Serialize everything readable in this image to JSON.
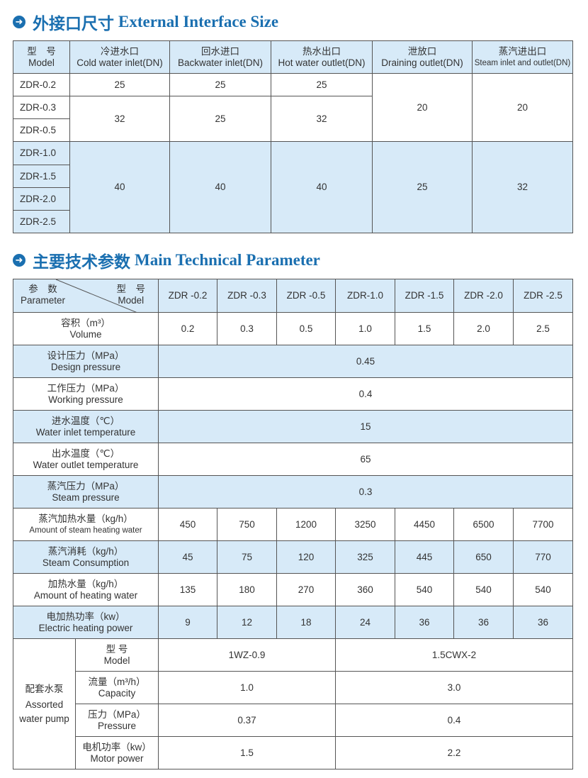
{
  "section1": {
    "icon": "arrow-right-circle-icon",
    "title_cn": "外接口尺寸",
    "title_en": "External Interface Size"
  },
  "table1": {
    "headers": [
      {
        "cn": "型　号",
        "en": "Model"
      },
      {
        "cn": "冷进水口",
        "en": "Cold water inlet(DN)"
      },
      {
        "cn": "回水进口",
        "en": "Backwater inlet(DN)"
      },
      {
        "cn": "热水出口",
        "en": "Hot water outlet(DN)"
      },
      {
        "cn": "泄放口",
        "en": "Draining outlet(DN)"
      },
      {
        "cn": "蒸汽进出口",
        "en": "Steam inlet and outlet(DN)"
      }
    ],
    "models": [
      "ZDR-0.2",
      "ZDR-0.3",
      "ZDR-0.5",
      "ZDR-1.0",
      "ZDR-1.5",
      "ZDR-2.0",
      "ZDR-2.5"
    ],
    "g1": {
      "cold": "25",
      "back": "25",
      "hot": "25"
    },
    "g2": {
      "cold": "32",
      "back": "25",
      "hot": "32"
    },
    "small_drain": "20",
    "small_steam": "20",
    "g3": {
      "cold": "40",
      "back": "40",
      "hot": "40",
      "drain": "25",
      "steam": "32"
    }
  },
  "section2": {
    "icon": "arrow-right-circle-icon",
    "title_cn": "主要技术参数",
    "title_en": "Main Technical Parameter"
  },
  "table2": {
    "corner": {
      "param_cn": "参　数",
      "param_en": "Parameter",
      "model_cn": "型　号",
      "model_en": "Model"
    },
    "models": [
      "ZDR -0.2",
      "ZDR -0.3",
      "ZDR -0.5",
      "ZDR-1.0",
      "ZDR -1.5",
      "ZDR -2.0",
      "ZDR -2.5"
    ],
    "rows": [
      {
        "cn": "容积（m³）",
        "en": "Volume",
        "values": [
          "0.2",
          "0.3",
          "0.5",
          "1.0",
          "1.5",
          "2.0",
          "2.5"
        ]
      },
      {
        "cn": "设计压力（MPa）",
        "en": "Design pressure",
        "value": "0.45"
      },
      {
        "cn": "工作压力（MPa）",
        "en": "Working pressure",
        "value": "0.4"
      },
      {
        "cn": "进水温度（℃）",
        "en": "Water inlet temperature",
        "value": "15"
      },
      {
        "cn": "出水温度（℃）",
        "en": "Water outlet temperature",
        "value": "65"
      },
      {
        "cn": "蒸汽压力（MPa）",
        "en": "Steam pressure",
        "value": "0.3"
      },
      {
        "cn": "蒸汽加热水量（kg/h）",
        "en": "Amount of steam heating water",
        "values": [
          "450",
          "750",
          "1200",
          "3250",
          "4450",
          "6500",
          "7700"
        ]
      },
      {
        "cn": "蒸汽消耗（kg/h）",
        "en": "Steam Consumption",
        "values": [
          "45",
          "75",
          "120",
          "325",
          "445",
          "650",
          "770"
        ]
      },
      {
        "cn": "加热水量（kg/h）",
        "en": "Amount of heating water",
        "values": [
          "135",
          "180",
          "270",
          "360",
          "540",
          "540",
          "540"
        ]
      },
      {
        "cn": "电加热功率（kw）",
        "en": "Electric heating power",
        "values": [
          "9",
          "12",
          "18",
          "24",
          "36",
          "36",
          "36"
        ]
      }
    ],
    "pump": {
      "label_cn": "配套水泵",
      "label_en1": "Assorted",
      "label_en2": "water pump",
      "rows": [
        {
          "cn": "型 号",
          "en": "Model",
          "a": "1WZ-0.9",
          "b": "1.5CWX-2"
        },
        {
          "cn": "流量（m³/h）",
          "en": "Capacity",
          "a": "1.0",
          "b": "3.0"
        },
        {
          "cn": "压力（MPa）",
          "en": "Pressure",
          "a": "0.37",
          "b": "0.4"
        },
        {
          "cn": "电机功率（kw）",
          "en": "Motor power",
          "a": "1.5",
          "b": "2.2"
        }
      ]
    }
  },
  "colors": {
    "accent": "#1a6fb0",
    "row_highlight": "#d7eaf8"
  }
}
